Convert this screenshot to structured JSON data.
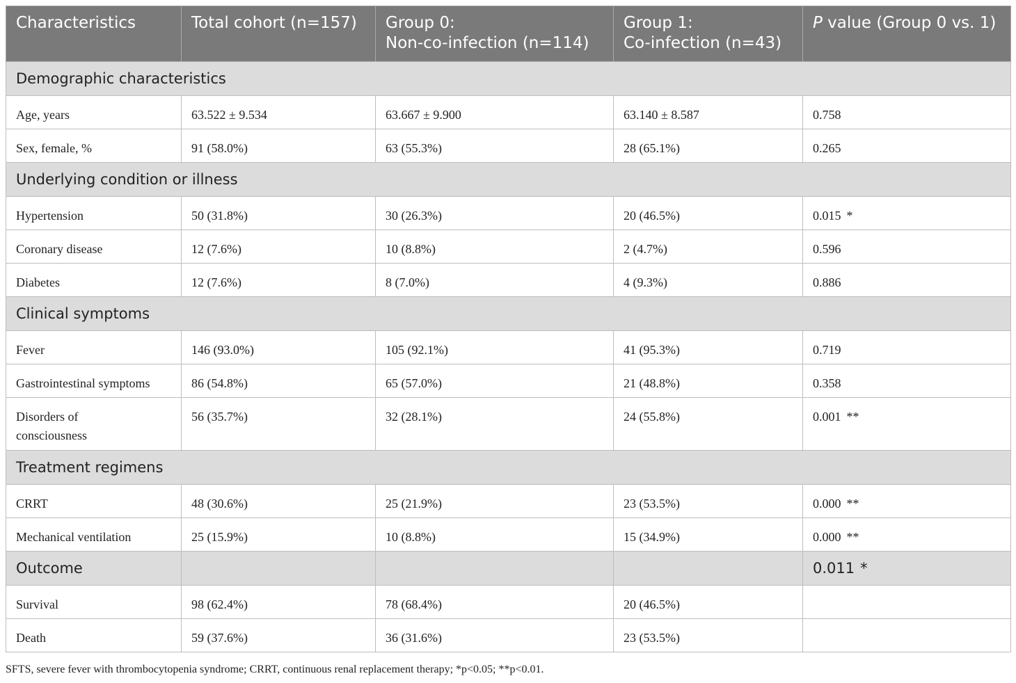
{
  "table": {
    "header": {
      "characteristics": "Characteristics",
      "total": "Total cohort (n=157)",
      "group0_line1": "Group 0:",
      "group0_line2": "Non-co-infection (n=114)",
      "group1_line1": "Group 1:",
      "group1_line2": "Co-infection (n=43)",
      "pvalue_italic": "P",
      "pvalue_rest": " value (Group 0 vs. 1)"
    },
    "sections": {
      "demographic": "Demographic characteristics",
      "underlying": "Underlying condition or illness",
      "clinical": "Clinical symptoms",
      "treatment": "Treatment regimens",
      "outcome": {
        "label": "Outcome",
        "p": "0.011",
        "sig": "*"
      }
    },
    "rows": {
      "age": {
        "label": "Age, years",
        "total": "63.522 ± 9.534",
        "g0": "63.667 ± 9.900",
        "g1": "63.140 ± 8.587",
        "p": "0.758",
        "sig": ""
      },
      "sex": {
        "label": "Sex, female, %",
        "total": "91 (58.0%)",
        "g0": "63 (55.3%)",
        "g1": "28 (65.1%)",
        "p": "0.265",
        "sig": ""
      },
      "hypertension": {
        "label": "Hypertension",
        "total": "50 (31.8%)",
        "g0": "30 (26.3%)",
        "g1": "20 (46.5%)",
        "p": "0.015",
        "sig": "*"
      },
      "coronary": {
        "label": "Coronary disease",
        "total": "12 (7.6%)",
        "g0": "10 (8.8%)",
        "g1": "2 (4.7%)",
        "p": "0.596",
        "sig": ""
      },
      "diabetes": {
        "label": "Diabetes",
        "total": "12 (7.6%)",
        "g0": "8 (7.0%)",
        "g1": "4 (9.3%)",
        "p": "0.886",
        "sig": ""
      },
      "fever": {
        "label": "Fever",
        "total": "146 (93.0%)",
        "g0": "105 (92.1%)",
        "g1": "41 (95.3%)",
        "p": "0.719",
        "sig": ""
      },
      "gastro": {
        "label": "Gastrointestinal symptoms",
        "total": "86 (54.8%)",
        "g0": "65 (57.0%)",
        "g1": "21 (48.8%)",
        "p": "0.358",
        "sig": ""
      },
      "consciousness": {
        "label_line1": "Disorders of",
        "label_line2": "consciousness",
        "total": "56 (35.7%)",
        "g0": "32 (28.1%)",
        "g1": "24 (55.8%)",
        "p": "0.001",
        "sig": "**"
      },
      "crrt": {
        "label": "CRRT",
        "total": "48 (30.6%)",
        "g0": "25 (21.9%)",
        "g1": "23 (53.5%)",
        "p": "0.000",
        "sig": "**"
      },
      "ventilation": {
        "label": "Mechanical ventilation",
        "total": "25 (15.9%)",
        "g0": "10 (8.8%)",
        "g1": "15 (34.9%)",
        "p": "0.000",
        "sig": "**"
      },
      "survival": {
        "label": "Survival",
        "total": "98 (62.4%)",
        "g0": "78 (68.4%)",
        "g1": "20 (46.5%)"
      },
      "death": {
        "label": "Death",
        "total": "59 (37.6%)",
        "g0": "36 (31.6%)",
        "g1": "23 (53.5%)"
      }
    }
  },
  "footnote": "SFTS, severe fever with thrombocytopenia syndrome; CRRT, continuous renal replacement therapy; *p<0.05; **p<0.01.",
  "colors": {
    "header_bg": "#7a7a7a",
    "section_bg": "#dcdcdc",
    "border": "#bdbdbd",
    "text": "#222222"
  }
}
